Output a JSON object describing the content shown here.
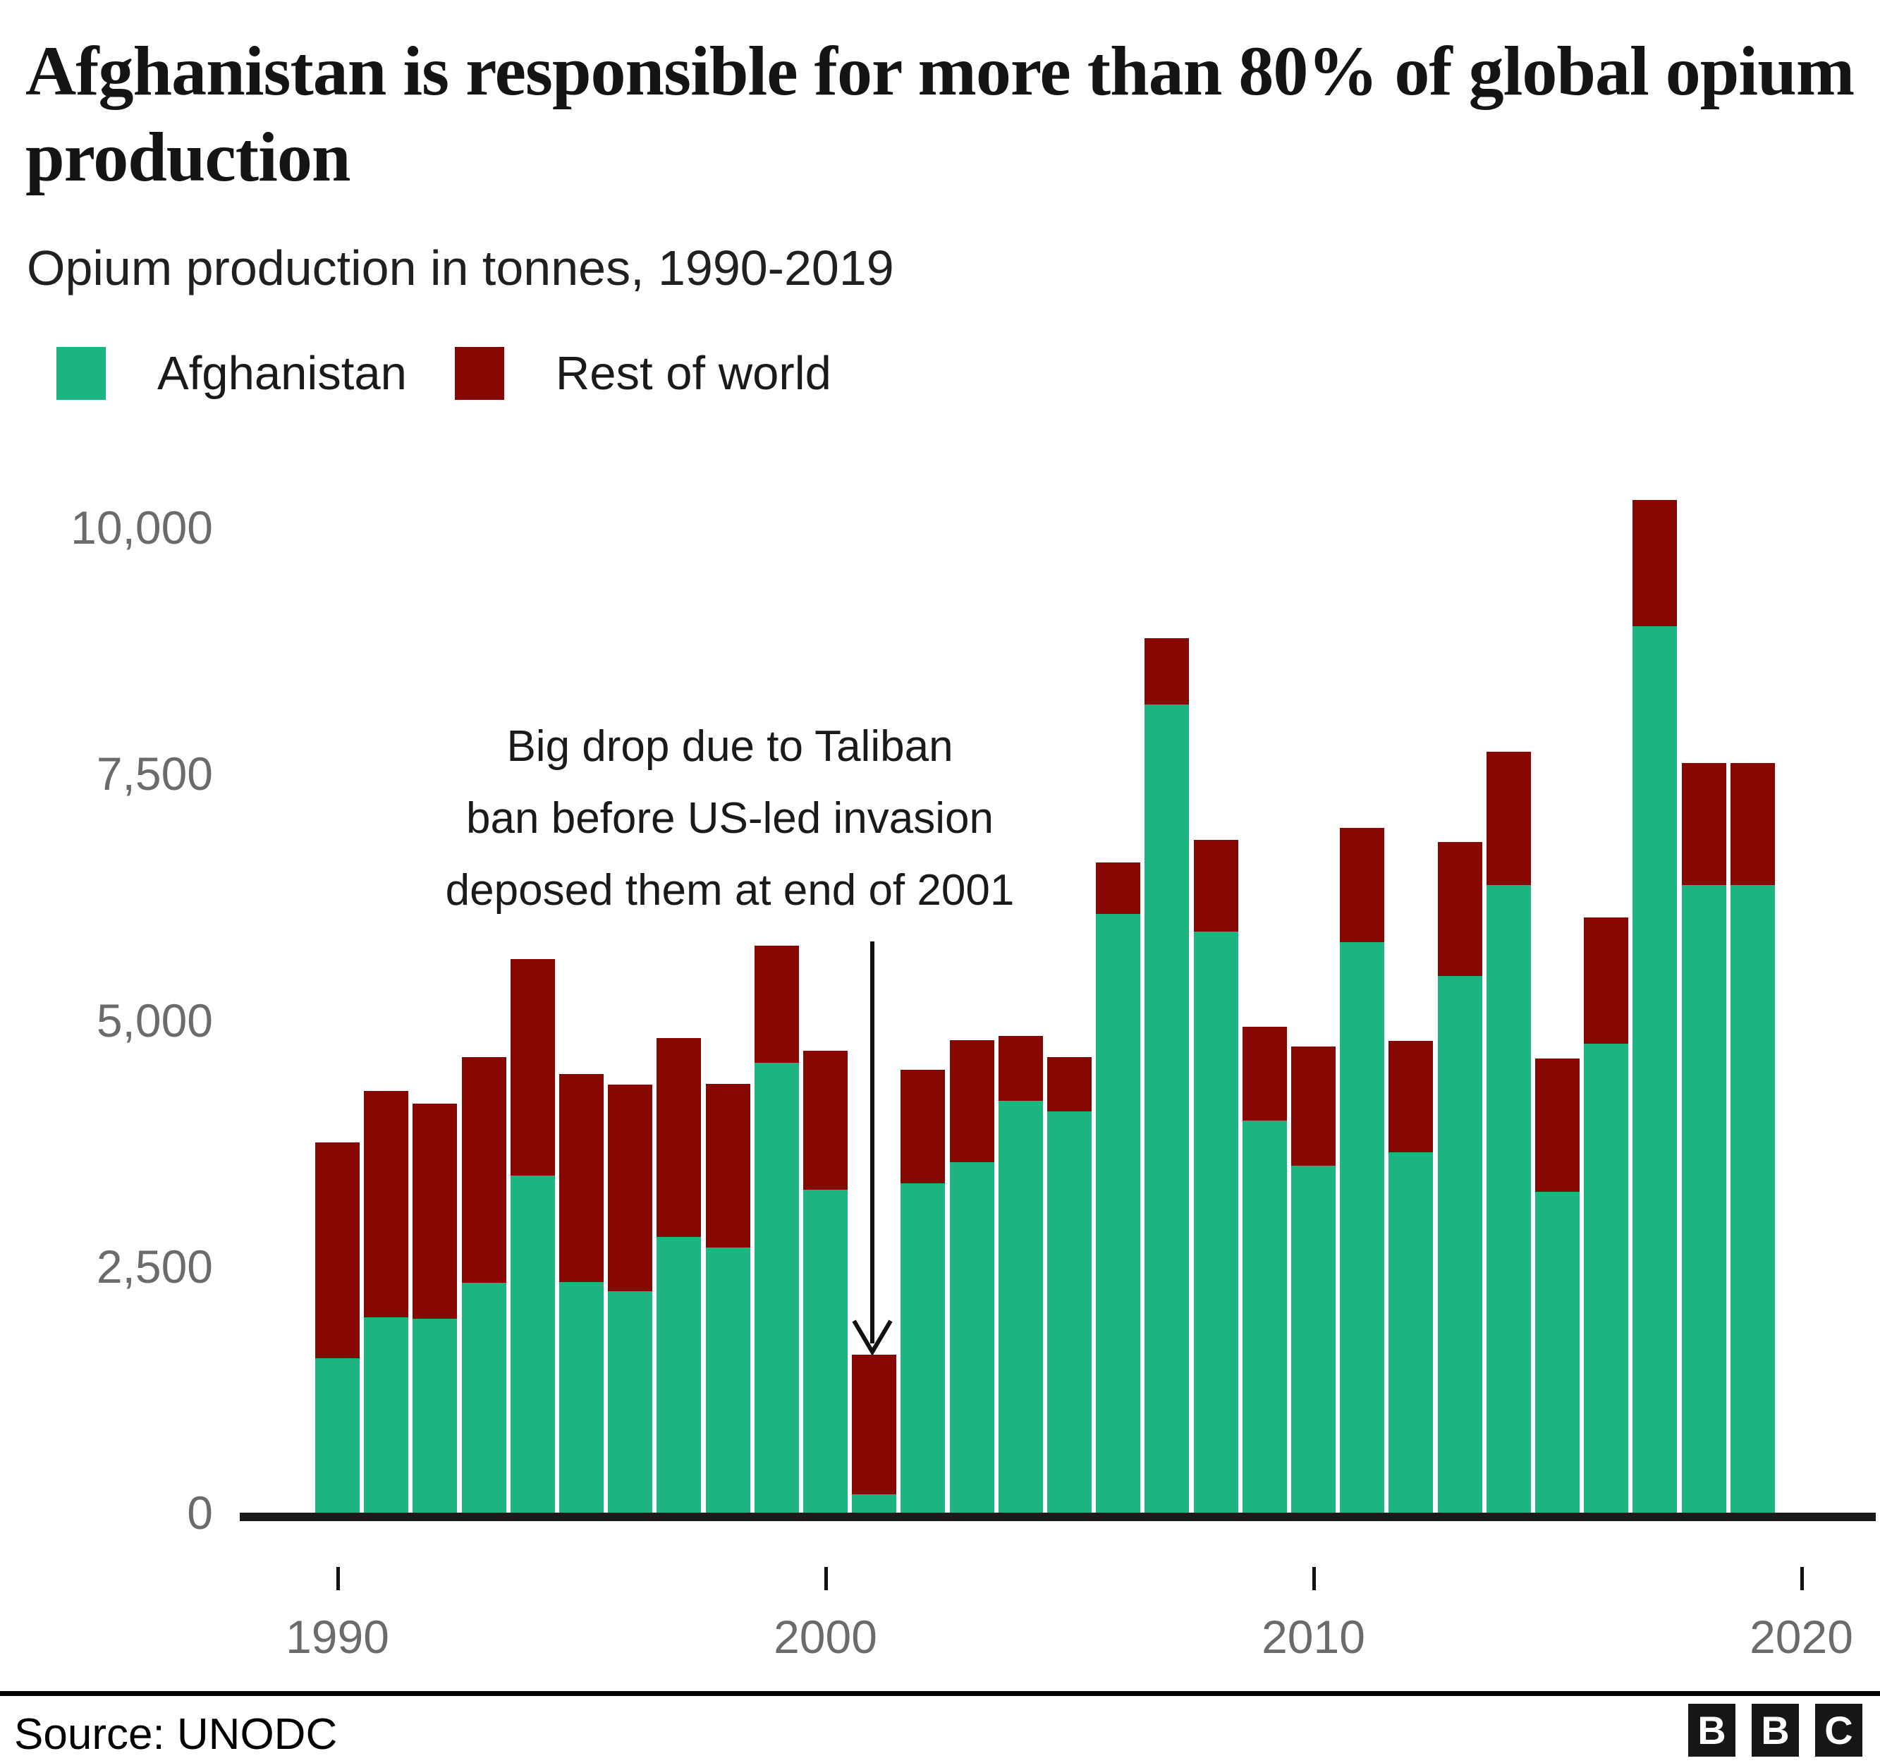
{
  "header": {
    "title": "Afghanistan is responsible for more than 80% of global opium production",
    "subtitle": "Opium production in tonnes, 1990-2019"
  },
  "legend": [
    {
      "label": "Afghanistan",
      "color": "#1DB480"
    },
    {
      "label": "Rest of world",
      "color": "#870803"
    }
  ],
  "annotation": {
    "lines": [
      "Big drop due to Taliban",
      "ban before US-led invasion",
      "deposed them at end of 2001"
    ],
    "arrow_icon": "down-arrow"
  },
  "footer": {
    "source": "Source: UNODC",
    "logo_letters": [
      "B",
      "B",
      "C"
    ]
  },
  "chart_data": {
    "type": "bar",
    "stacked": true,
    "title": "Afghanistan is responsible for more than 80% of global opium production",
    "subtitle": "Opium production in tonnes, 1990-2019",
    "xlabel": "",
    "ylabel": "",
    "ylim": [
      0,
      10000
    ],
    "grid": false,
    "legend_position": "top",
    "x": [
      1990,
      1991,
      1992,
      1993,
      1994,
      1995,
      1996,
      1997,
      1998,
      1999,
      2000,
      2001,
      2002,
      2003,
      2004,
      2005,
      2006,
      2007,
      2008,
      2009,
      2010,
      2011,
      2012,
      2013,
      2014,
      2015,
      2016,
      2017,
      2018,
      2019
    ],
    "series": [
      {
        "name": "Afghanistan",
        "color": "#1DB480",
        "values": [
          1570,
          1980,
          1970,
          2330,
          3420,
          2340,
          2250,
          2800,
          2690,
          4570,
          3280,
          185,
          3340,
          3560,
          4180,
          4070,
          6080,
          8200,
          5900,
          3980,
          3520,
          5790,
          3660,
          5450,
          6370,
          3260,
          4760,
          9000,
          6370,
          6370
        ]
      },
      {
        "name": "Rest of world",
        "color": "#870803",
        "values": [
          2190,
          2300,
          2180,
          2290,
          2200,
          2110,
          2100,
          2020,
          1660,
          1190,
          1410,
          1415,
          1150,
          1240,
          660,
          550,
          520,
          670,
          930,
          950,
          1210,
          1160,
          1130,
          1360,
          1350,
          1350,
          1280,
          1280,
          1240,
          1240
        ]
      }
    ],
    "yticks": [
      0,
      2500,
      5000,
      7500,
      10000
    ],
    "ytick_labels": [
      "0",
      "2,500",
      "5,000",
      "7,500",
      "10,000"
    ],
    "xticks": [
      1990,
      2000,
      2010,
      2020
    ],
    "xtick_labels": [
      "1990",
      "2000",
      "2010",
      "2020"
    ]
  }
}
